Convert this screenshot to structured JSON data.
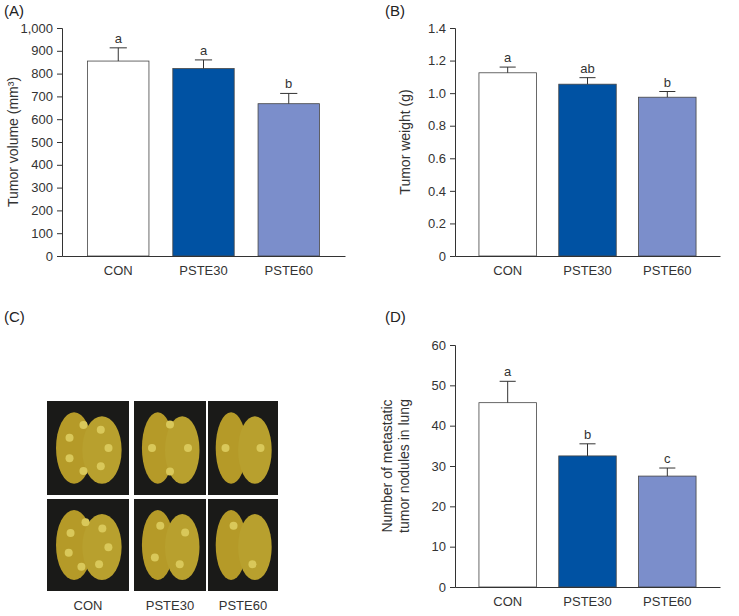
{
  "chart_data": [
    {
      "type": "bar",
      "title": "(A)",
      "categories": [
        "CON",
        "PSTE30",
        "PSTE60"
      ],
      "values": [
        855,
        822,
        668
      ],
      "errors": [
        58,
        38,
        45
      ],
      "annotations": [
        "a",
        "a",
        "b"
      ],
      "colors": [
        "#ffffff",
        "#0052a3",
        "#7b8ecb"
      ],
      "y_label": "Tumor volume (mm³)",
      "ylim": [
        0,
        1000
      ],
      "yticks": [
        0,
        100,
        200,
        300,
        400,
        500,
        600,
        700,
        800,
        900,
        {
          "value": 1000,
          "label": "1,000"
        }
      ]
    },
    {
      "type": "bar",
      "title": "(B)",
      "categories": [
        "CON",
        "PSTE30",
        "PSTE60"
      ],
      "values": [
        1.125,
        1.055,
        0.975
      ],
      "errors": [
        0.035,
        0.04,
        0.035
      ],
      "annotations": [
        "a",
        "ab",
        "b"
      ],
      "colors": [
        "#ffffff",
        "#0052a3",
        "#7b8ecb"
      ],
      "y_label": "Tumor weight (g)",
      "ylim": [
        0,
        1.4
      ],
      "yticks": [
        0,
        0.2,
        0.4,
        0.6,
        0.8,
        {
          "value": 1,
          "label": "1.0"
        },
        1.2,
        1.4
      ]
    },
    {
      "type": "bar",
      "title": "(D)",
      "categories": [
        "CON",
        "PSTE30",
        "PSTE60"
      ],
      "values": [
        45.7,
        32.5,
        27.5
      ],
      "errors": [
        5.3,
        3,
        2
      ],
      "annotations": [
        "a",
        "b",
        "c"
      ],
      "colors": [
        "#ffffff",
        "#0052a3",
        "#7b8ecb"
      ],
      "y_label": [
        "Number of metastatic",
        "tumor nodules in lung"
      ],
      "ylim": [
        0,
        60
      ],
      "yticks": [
        0,
        10,
        20,
        30,
        40,
        50,
        60
      ]
    }
  ],
  "panel_c": {
    "label": "(C)",
    "captions": [
      "CON",
      "PSTE30",
      "PSTE60"
    ]
  }
}
